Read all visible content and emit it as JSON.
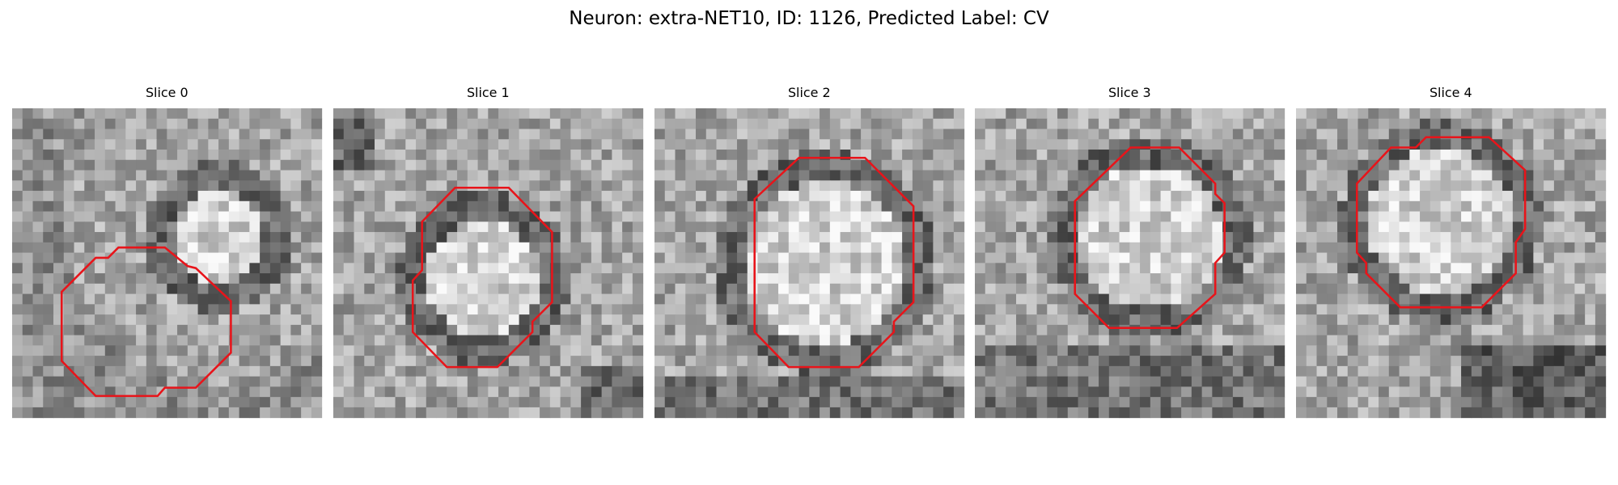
{
  "title": "Neuron: extra-NET10, ID: 1126, Predicted Label: CV",
  "panels": [
    {
      "title": "Slice 0"
    },
    {
      "title": "Slice 1"
    },
    {
      "title": "Slice 2"
    },
    {
      "title": "Slice 3"
    },
    {
      "title": "Slice 4"
    }
  ]
}
